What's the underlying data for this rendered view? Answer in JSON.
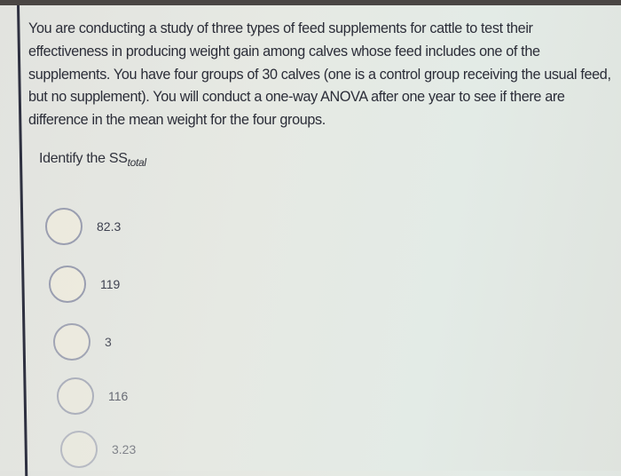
{
  "question": {
    "text": "You are conducting a study of three types of feed supplements for cattle to test their effectiveness in producing weight gain among calves whose feed includes one of the supplements. You have four groups of 30 calves (one is a control group receiving the usual feed, but no supplement). You will conduct a one-way ANOVA after one year to see if there are difference in the mean weight for the four groups.",
    "prompt": "Identify the SS",
    "prompt_subscript": "total"
  },
  "options": [
    {
      "label": "82.3",
      "selected": false
    },
    {
      "label": "119",
      "selected": false
    },
    {
      "label": "3",
      "selected": false
    },
    {
      "label": "116",
      "selected": false
    },
    {
      "label": "3.23",
      "selected": false
    }
  ]
}
